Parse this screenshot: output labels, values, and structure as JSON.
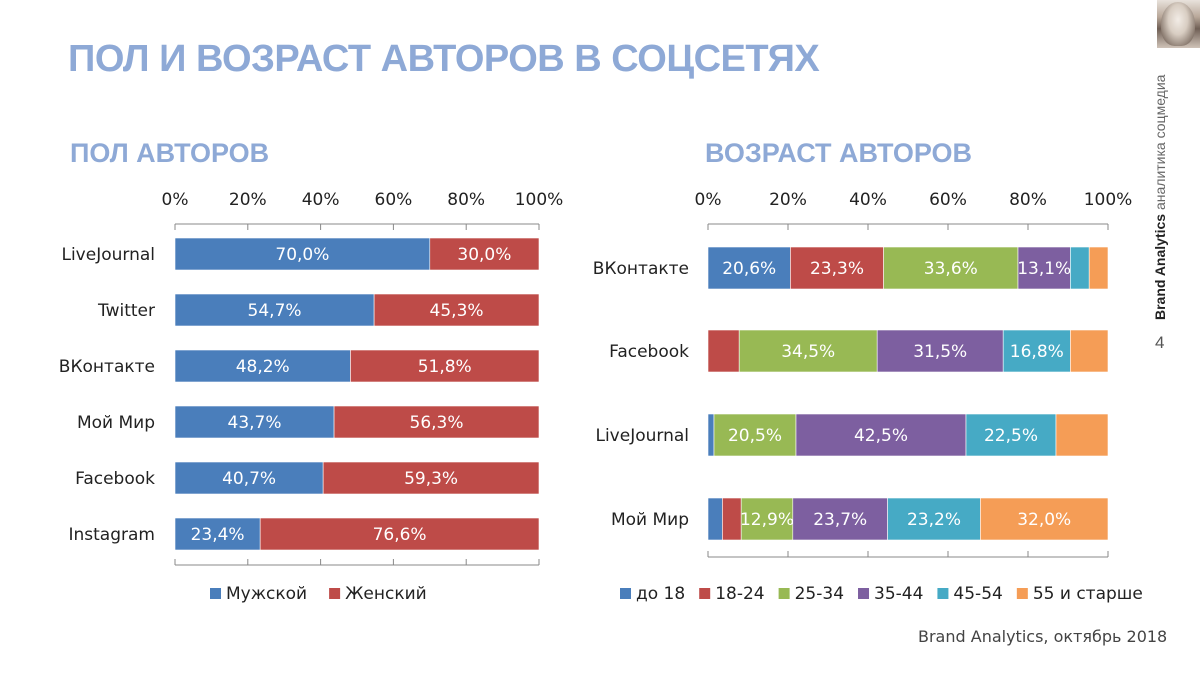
{
  "title": "ПОЛ И ВОЗРАСТ АВТОРОВ В СОЦСЕТЯХ",
  "brand_side": {
    "bold": "Brand Analytics",
    "light": "аналитика соцмедиа"
  },
  "page_number": "4",
  "footer": "Brand Analytics, октябрь 2018",
  "chart_data": [
    {
      "type": "bar",
      "orientation": "horizontal-stacked-100",
      "title": "ПОЛ АВТОРОВ",
      "xlim": [
        0,
        100
      ],
      "ticks": [
        "0%",
        "20%",
        "40%",
        "60%",
        "80%",
        "100%"
      ],
      "categories": [
        "LiveJournal",
        "Twitter",
        "ВКонтакте",
        "Мой Мир",
        "Facebook",
        "Instagram"
      ],
      "series": [
        {
          "name": "Мужской",
          "color": "#4a7ebb",
          "values": [
            70.0,
            54.7,
            48.2,
            43.7,
            40.7,
            23.4
          ],
          "labels": [
            "70,0%",
            "54,7%",
            "48,2%",
            "43,7%",
            "40,7%",
            "23,4%"
          ]
        },
        {
          "name": "Женский",
          "color": "#be4b48",
          "values": [
            30.0,
            45.3,
            51.8,
            56.3,
            59.3,
            76.6
          ],
          "labels": [
            "30,0%",
            "45,3%",
            "51,8%",
            "56,3%",
            "59,3%",
            "76,6%"
          ]
        }
      ],
      "legend": "bottom"
    },
    {
      "type": "bar",
      "orientation": "horizontal-stacked-100",
      "title": "ВОЗРАСТ АВТОРОВ",
      "xlim": [
        0,
        100
      ],
      "ticks": [
        "0%",
        "20%",
        "40%",
        "60%",
        "80%",
        "100%"
      ],
      "categories": [
        "ВКонтакте",
        "Facebook",
        "LiveJournal",
        "Мой Мир"
      ],
      "series": [
        {
          "name": "до 18",
          "color": "#4a7ebb",
          "values": [
            20.6,
            0,
            1.5,
            3.6
          ],
          "labels": [
            "20,6%",
            "",
            "",
            ""
          ]
        },
        {
          "name": "18-24",
          "color": "#be4b48",
          "values": [
            23.3,
            7.8,
            0,
            4.7
          ],
          "labels": [
            "23,3%",
            "",
            "",
            ""
          ]
        },
        {
          "name": "25-34",
          "color": "#98b954",
          "values": [
            33.6,
            34.5,
            20.5,
            12.9
          ],
          "labels": [
            "33,6%",
            "34,5%",
            "20,5%",
            "12,9%"
          ]
        },
        {
          "name": "35-44",
          "color": "#7d5fa0",
          "values": [
            13.1,
            31.5,
            42.5,
            23.7
          ],
          "labels": [
            "13,1%",
            "31,5%",
            "42,5%",
            "23,7%"
          ]
        },
        {
          "name": "45-54",
          "color": "#46aac5",
          "values": [
            4.7,
            16.8,
            22.5,
            23.2
          ],
          "labels": [
            "",
            "16,8%",
            "22,5%",
            "23,2%"
          ]
        },
        {
          "name": "55 и старше",
          "color": "#f59d56",
          "values": [
            4.7,
            9.4,
            13.0,
            32.0
          ],
          "labels": [
            "",
            "",
            "",
            "32,0%"
          ]
        }
      ],
      "legend": "bottom"
    }
  ]
}
